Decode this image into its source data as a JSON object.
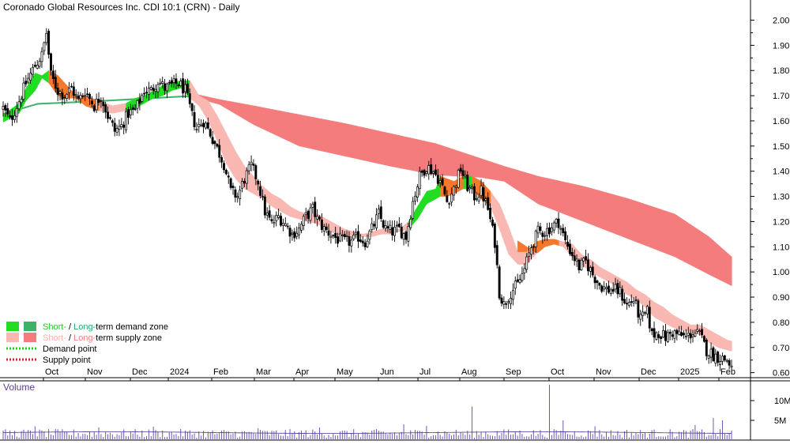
{
  "chart_data": [
    {
      "type": "candlestick",
      "title": "Coronado Global Resources Inc. CDI 10:1 (CRN) - Daily",
      "x_tick_labels": [
        "Oct",
        "Nov",
        "Dec",
        "2024",
        "Feb",
        "Mar",
        "Apr",
        "May",
        "Jun",
        "Jul",
        "Aug",
        "Sep",
        "Oct",
        "Nov",
        "Dec",
        "2025",
        "Feb"
      ],
      "y_tick_labels": [
        "2.00",
        "1.90",
        "1.80",
        "1.70",
        "1.60",
        "1.50",
        "1.40",
        "1.30",
        "1.20",
        "1.10",
        "1.00",
        "0.90",
        "0.80",
        "0.70",
        "0.60"
      ],
      "ylim": [
        0.58,
        2.08
      ],
      "grid": false,
      "legend": {
        "position": "bottom-left",
        "entries": [
          {
            "parts": [
              {
                "text": "Short-",
                "color": "#22cc22"
              },
              {
                "text": " / ",
                "color": "#000000"
              },
              {
                "text": "Long-",
                "color": "#22aa66"
              },
              {
                "text": "term demand zone",
                "color": "#000000"
              }
            ]
          },
          {
            "parts": [
              {
                "text": "Short-",
                "color": "#f6b3ad"
              },
              {
                "text": " / ",
                "color": "#000000"
              },
              {
                "text": "Long-",
                "color": "#f08080"
              },
              {
                "text": "term supply zone",
                "color": "#000000"
              }
            ]
          },
          {
            "parts": [
              {
                "text": "Demand point",
                "color": "#000000"
              }
            ]
          },
          {
            "parts": [
              {
                "text": "Supply point",
                "color": "#000000"
              }
            ]
          }
        ]
      },
      "price_waypoints": [
        [
          0,
          1.65
        ],
        [
          3,
          1.6
        ],
        [
          7,
          1.68
        ],
        [
          10,
          1.75
        ],
        [
          14,
          1.82
        ],
        [
          17,
          1.86
        ],
        [
          19,
          1.95
        ],
        [
          21,
          1.78
        ],
        [
          24,
          1.72
        ],
        [
          27,
          1.7
        ],
        [
          30,
          1.73
        ],
        [
          33,
          1.68
        ],
        [
          36,
          1.72
        ],
        [
          40,
          1.66
        ],
        [
          43,
          1.7
        ],
        [
          46,
          1.62
        ],
        [
          49,
          1.56
        ],
        [
          52,
          1.58
        ],
        [
          55,
          1.63
        ],
        [
          58,
          1.64
        ],
        [
          62,
          1.72
        ],
        [
          65,
          1.72
        ],
        [
          68,
          1.76
        ],
        [
          71,
          1.73
        ],
        [
          74,
          1.74
        ],
        [
          77,
          1.75
        ],
        [
          80,
          1.72
        ],
        [
          83,
          1.62
        ],
        [
          85,
          1.57
        ],
        [
          88,
          1.6
        ],
        [
          91,
          1.55
        ],
        [
          94,
          1.49
        ],
        [
          97,
          1.43
        ],
        [
          100,
          1.32
        ],
        [
          103,
          1.3
        ],
        [
          106,
          1.37
        ],
        [
          109,
          1.42
        ],
        [
          112,
          1.36
        ],
        [
          115,
          1.24
        ],
        [
          118,
          1.19
        ],
        [
          121,
          1.22
        ],
        [
          124,
          1.19
        ],
        [
          127,
          1.15
        ],
        [
          130,
          1.17
        ],
        [
          133,
          1.22
        ],
        [
          136,
          1.25
        ],
        [
          138,
          1.21
        ],
        [
          141,
          1.17
        ],
        [
          144,
          1.15
        ],
        [
          147,
          1.13
        ],
        [
          150,
          1.12
        ],
        [
          153,
          1.12
        ],
        [
          156,
          1.14
        ],
        [
          159,
          1.12
        ],
        [
          162,
          1.17
        ],
        [
          165,
          1.23
        ],
        [
          168,
          1.17
        ],
        [
          171,
          1.16
        ],
        [
          174,
          1.17
        ],
        [
          177,
          1.14
        ],
        [
          180,
          1.28
        ],
        [
          183,
          1.38
        ],
        [
          186,
          1.42
        ],
        [
          189,
          1.4
        ],
        [
          192,
          1.36
        ],
        [
          195,
          1.28
        ],
        [
          198,
          1.33
        ],
        [
          201,
          1.41
        ],
        [
          204,
          1.34
        ],
        [
          207,
          1.3
        ],
        [
          210,
          1.32
        ],
        [
          213,
          1.25
        ],
        [
          216,
          1.12
        ],
        [
          218,
          0.92
        ],
        [
          220,
          0.87
        ],
        [
          223,
          0.92
        ],
        [
          226,
          0.95
        ],
        [
          229,
          1.01
        ],
        [
          232,
          1.1
        ],
        [
          235,
          1.16
        ],
        [
          238,
          1.16
        ],
        [
          241,
          1.18
        ],
        [
          244,
          1.2
        ],
        [
          247,
          1.12
        ],
        [
          250,
          1.07
        ],
        [
          253,
          1.02
        ],
        [
          256,
          1.04
        ],
        [
          259,
          0.99
        ],
        [
          262,
          0.95
        ],
        [
          265,
          0.93
        ],
        [
          268,
          0.93
        ],
        [
          271,
          0.92
        ],
        [
          274,
          0.87
        ],
        [
          277,
          0.89
        ],
        [
          280,
          0.81
        ],
        [
          283,
          0.84
        ],
        [
          285,
          0.75
        ],
        [
          288,
          0.76
        ],
        [
          291,
          0.74
        ],
        [
          294,
          0.76
        ],
        [
          297,
          0.75
        ],
        [
          300,
          0.74
        ],
        [
          303,
          0.76
        ],
        [
          306,
          0.75
        ],
        [
          309,
          0.69
        ],
        [
          312,
          0.67
        ],
        [
          315,
          0.66
        ],
        [
          318,
          0.65
        ],
        [
          320,
          0.62
        ]
      ],
      "short_term_zone_waypoints": [
        [
          0,
          1.595,
          1.625
        ],
        [
          7,
          1.63,
          1.67
        ],
        [
          10,
          1.68,
          1.73
        ],
        [
          14,
          1.72,
          1.79
        ],
        [
          17,
          1.77,
          1.78
        ],
        [
          20,
          1.75,
          1.8
        ],
        [
          24,
          1.7,
          1.78
        ],
        [
          28,
          1.69,
          1.74
        ],
        [
          32,
          1.69,
          1.7
        ],
        [
          36,
          1.66,
          1.7
        ],
        [
          42,
          1.64,
          1.68
        ],
        [
          48,
          1.63,
          1.66
        ],
        [
          54,
          1.64,
          1.67
        ],
        [
          58,
          1.65,
          1.69
        ],
        [
          62,
          1.67,
          1.7
        ],
        [
          66,
          1.69,
          1.72
        ],
        [
          70,
          1.7,
          1.74
        ],
        [
          74,
          1.72,
          1.75
        ],
        [
          78,
          1.73,
          1.76
        ],
        [
          82,
          1.69,
          1.76
        ],
        [
          86,
          1.66,
          1.7
        ],
        [
          90,
          1.6,
          1.68
        ],
        [
          94,
          1.52,
          1.62
        ],
        [
          98,
          1.43,
          1.55
        ],
        [
          102,
          1.37,
          1.48
        ],
        [
          106,
          1.33,
          1.42
        ],
        [
          110,
          1.31,
          1.38
        ],
        [
          114,
          1.29,
          1.34
        ],
        [
          118,
          1.26,
          1.31
        ],
        [
          122,
          1.24,
          1.29
        ],
        [
          126,
          1.22,
          1.26
        ],
        [
          130,
          1.21,
          1.24
        ],
        [
          134,
          1.2,
          1.23
        ],
        [
          138,
          1.19,
          1.23
        ],
        [
          142,
          1.17,
          1.21
        ],
        [
          146,
          1.15,
          1.19
        ],
        [
          150,
          1.14,
          1.17
        ],
        [
          154,
          1.14,
          1.16
        ],
        [
          158,
          1.14,
          1.15
        ],
        [
          162,
          1.14,
          1.16
        ],
        [
          166,
          1.15,
          1.17
        ],
        [
          170,
          1.15,
          1.17
        ],
        [
          174,
          1.16,
          1.17
        ],
        [
          178,
          1.17,
          1.2
        ],
        [
          182,
          1.21,
          1.26
        ],
        [
          186,
          1.27,
          1.32
        ],
        [
          190,
          1.29,
          1.33
        ],
        [
          192,
          1.3,
          1.38
        ],
        [
          195,
          1.3,
          1.37
        ],
        [
          198,
          1.31,
          1.36
        ],
        [
          202,
          1.33,
          1.38
        ],
        [
          206,
          1.33,
          1.38
        ],
        [
          210,
          1.29,
          1.36
        ],
        [
          214,
          1.26,
          1.32
        ],
        [
          218,
          1.17,
          1.27
        ],
        [
          222,
          1.07,
          1.18
        ],
        [
          226,
          1.03,
          1.08
        ],
        [
          230,
          1.03,
          1.08
        ],
        [
          234,
          1.07,
          1.12
        ],
        [
          238,
          1.1,
          1.13
        ],
        [
          242,
          1.11,
          1.13
        ],
        [
          246,
          1.1,
          1.12
        ],
        [
          250,
          1.06,
          1.11
        ],
        [
          254,
          1.03,
          1.07
        ],
        [
          258,
          1.0,
          1.05
        ],
        [
          262,
          0.98,
          1.02
        ],
        [
          266,
          0.96,
          1.0
        ],
        [
          270,
          0.94,
          0.98
        ],
        [
          274,
          0.91,
          0.96
        ],
        [
          278,
          0.89,
          0.93
        ],
        [
          282,
          0.86,
          0.91
        ],
        [
          286,
          0.82,
          0.88
        ],
        [
          290,
          0.8,
          0.86
        ],
        [
          294,
          0.78,
          0.83
        ],
        [
          298,
          0.77,
          0.81
        ],
        [
          302,
          0.76,
          0.79
        ],
        [
          306,
          0.75,
          0.79
        ],
        [
          310,
          0.72,
          0.77
        ],
        [
          314,
          0.7,
          0.75
        ],
        [
          318,
          0.69,
          0.73
        ],
        [
          320,
          0.685,
          0.725
        ]
      ],
      "long_term_zone_waypoints": [
        [
          0,
          1.625,
          1.63
        ],
        [
          15,
          1.665,
          1.67
        ],
        [
          40,
          1.675,
          1.68
        ],
        [
          80,
          1.695,
          1.7
        ],
        [
          85,
          1.69,
          1.705
        ],
        [
          95,
          1.665,
          1.685
        ],
        [
          110,
          1.585,
          1.66
        ],
        [
          130,
          1.5,
          1.625
        ],
        [
          150,
          1.46,
          1.59
        ],
        [
          170,
          1.42,
          1.55
        ],
        [
          190,
          1.385,
          1.51
        ],
        [
          210,
          1.375,
          1.45
        ],
        [
          220,
          1.36,
          1.42
        ],
        [
          235,
          1.27,
          1.38
        ],
        [
          255,
          1.2,
          1.34
        ],
        [
          275,
          1.13,
          1.29
        ],
        [
          295,
          1.06,
          1.23
        ],
        [
          310,
          0.99,
          1.14
        ],
        [
          320,
          0.945,
          1.06
        ]
      ],
      "zone_color_changes": {
        "short_term": [
          [
            0,
            "demand"
          ],
          [
            20,
            "supply"
          ],
          [
            54,
            "demand"
          ],
          [
            82,
            "supply"
          ],
          [
            158,
            "supply"
          ],
          [
            178,
            "demand"
          ],
          [
            192,
            "supply"
          ],
          [
            202,
            "demand"
          ],
          [
            206,
            "supply"
          ],
          [
            226,
            "supply"
          ],
          [
            232,
            "supply"
          ],
          [
            250,
            "supply"
          ]
        ],
        "long_term": [
          [
            0,
            "demand"
          ],
          [
            82,
            "supply"
          ]
        ]
      },
      "volume": {
        "label": "Volume",
        "y_tick_labels": [
          "10M",
          "5M"
        ],
        "ylim": [
          0,
          15000000
        ],
        "typical": 2000000,
        "spikes": [
          [
            14,
            3500000
          ],
          [
            42,
            3200000
          ],
          [
            66,
            3400000
          ],
          [
            112,
            3000000
          ],
          [
            139,
            3200000
          ],
          [
            176,
            4000000
          ],
          [
            186,
            3600000
          ],
          [
            206,
            8500000
          ],
          [
            240,
            14000000
          ],
          [
            246,
            5000000
          ],
          [
            260,
            3500000
          ],
          [
            304,
            3800000
          ],
          [
            312,
            5600000
          ],
          [
            316,
            5000000
          ]
        ]
      }
    }
  ]
}
